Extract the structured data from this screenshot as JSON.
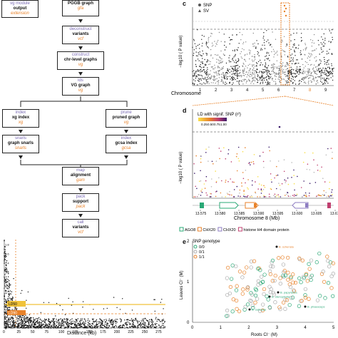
{
  "flowchart": {
    "legend": {
      "module": "vg module",
      "output": "output",
      "extension": "extension"
    },
    "nodes": [
      {
        "id": "pggb",
        "module": "",
        "output": "PGGB graph",
        "ext": "gfa"
      },
      {
        "id": "deconstruct",
        "module": "deconstruct",
        "output": "variants",
        "ext": "vcf"
      },
      {
        "id": "construct",
        "module": "construct",
        "output": "chr-level graphs",
        "ext": "vg"
      },
      {
        "id": "ids",
        "module": "ids",
        "output": "VG graph",
        "ext": "vg"
      },
      {
        "id": "index",
        "module": "index",
        "output": "xg index",
        "ext": "xg"
      },
      {
        "id": "prune",
        "module": "prune",
        "output": "pruned graph",
        "ext": "vg"
      },
      {
        "id": "snarls",
        "module": "snarls",
        "output": "graph snarls",
        "ext": "snarls"
      },
      {
        "id": "index2",
        "module": "index",
        "output": "gcsa index",
        "ext": "gcsa"
      },
      {
        "id": "map",
        "module": "map",
        "output": "alignment",
        "ext": "gam"
      },
      {
        "id": "pack",
        "module": "pack",
        "output": "support",
        "ext": "pack"
      },
      {
        "id": "call",
        "module": "call",
        "output": "variants",
        "ext": "vcf"
      }
    ]
  },
  "panel_c": {
    "label": "c",
    "legend": [
      {
        "name": "SNP",
        "color": "#555555"
      },
      {
        "name": "SV",
        "color": "#555555"
      }
    ],
    "ylabel": "−log10 ( P value)",
    "xlabel": "Chromosome",
    "chart_data": {
      "type": "scatter",
      "categories": [
        "1",
        "2",
        "3",
        "4",
        "5",
        "6",
        "7",
        "8",
        "9"
      ],
      "xlabel": "Chromosome",
      "ylabel": "−log10 ( P value)",
      "highlight_category": "8",
      "threshold": "dashed"
    }
  },
  "panel_d": {
    "label": "d",
    "legend_title": "LD with signif. SNP (r²)",
    "legend_ticks": [
      "0.25",
      "0.50",
      "0.75",
      "1.00"
    ],
    "ylabel": "−log10 ( P value)",
    "xlabel": "Chromosome 8 (Mb)",
    "chart_data": {
      "type": "scatter",
      "xticks": [
        "13.575",
        "13.580",
        "13.585",
        "13.590",
        "13.595",
        "13.600",
        "13.605",
        "13.610"
      ],
      "xlabel": "Chromosome 8 (Mb)",
      "ylabel": "−log10 ( P value)"
    }
  },
  "panel_e": {
    "label": "e",
    "gene_legend": [
      {
        "name": "AGO8",
        "color": "#2aa876"
      },
      {
        "name": "CHX20",
        "color": "#e8822a"
      },
      {
        "name": "CHX20",
        "color": "#8d7cc2"
      },
      {
        "name": "histone H4 domain protein",
        "color": "#c04070"
      }
    ],
    "genotype_title": "SNP genotype",
    "genotypes": [
      {
        "name": "0/0",
        "color": "#2aa876"
      },
      {
        "name": "0/1",
        "color": "#aaaaaa"
      },
      {
        "name": "1/1",
        "color": "#e8822a"
      }
    ],
    "annotations": [
      "B. schensia",
      "B. papyracea",
      "B. stenophylla",
      "B. subulata",
      "B. phaeoceps"
    ],
    "ylabel": "Leaves Cl⁻ (M)",
    "xlabel": "Roots Cl⁻ (M)",
    "chart_data": {
      "type": "scatter",
      "xlabel": "Roots Cl⁻ (M)",
      "ylabel": "Leaves Cl⁻ (M)",
      "xlim": [
        0,
        5
      ],
      "ylim": [
        0,
        2
      ],
      "xticks": [
        "0",
        "1",
        "2",
        "3",
        "4",
        "5"
      ],
      "yticks": [
        "0",
        "1",
        "2"
      ]
    }
  },
  "panel_b": {
    "xlabel": "Distance (kb)",
    "xticks": [
      "0",
      "25",
      "50",
      "75",
      "100",
      "125",
      "150",
      "175",
      "200",
      "225",
      "250",
      "275"
    ],
    "yticks": [
      "0",
      "0.2",
      "0.4",
      "0.6",
      "0.8",
      "1.0",
      "1.2",
      "1.4",
      "1.6",
      "1.8"
    ],
    "tags": [
      "LD50",
      "LD90"
    ],
    "chart_data": {
      "type": "scatter",
      "xlabel": "Distance (kb)",
      "xlim": [
        0,
        290
      ],
      "ylim": [
        0,
        1.9
      ]
    }
  },
  "colors": {
    "accent": "#e8822a",
    "purple": "#7a6bb5",
    "green": "#2aa876",
    "line": "#f0c23a"
  }
}
